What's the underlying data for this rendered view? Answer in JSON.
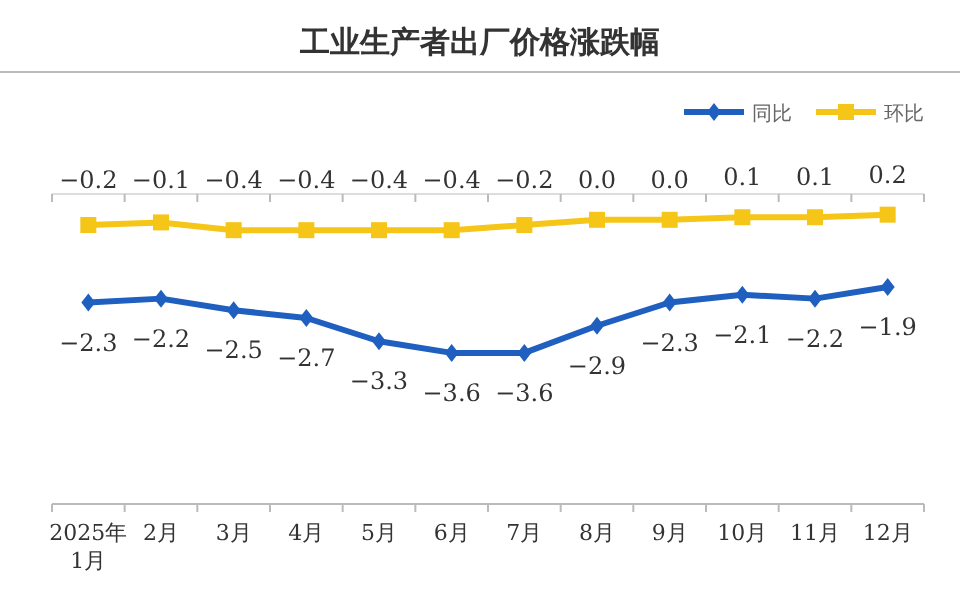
{
  "chart_data": {
    "type": "line",
    "title": "工业生产者出厂价格涨跌幅",
    "categories": [
      "2025年\n1月",
      "2月",
      "3月",
      "4月",
      "5月",
      "6月",
      "7月",
      "8月",
      "9月",
      "10月",
      "11月",
      "12月"
    ],
    "series": [
      {
        "name": "同比",
        "color": "#1f5fbf",
        "marker": "diamond",
        "values": [
          -2.3,
          -2.2,
          -2.5,
          -2.7,
          -3.3,
          -3.6,
          -3.6,
          -2.9,
          -2.3,
          -2.1,
          -2.2,
          -1.9
        ]
      },
      {
        "name": "环比",
        "color": "#f5c518",
        "marker": "square",
        "axis": "y2",
        "values": [
          -0.2,
          -0.1,
          -0.4,
          -0.4,
          -0.4,
          -0.4,
          -0.2,
          0.0,
          0.0,
          0.1,
          0.1,
          0.2
        ],
        "value_labels": [
          "−0.2",
          "−0.1",
          "−0.4",
          "−0.4",
          "−0.4",
          "−0.4",
          "−0.2",
          "0.0",
          "0.0",
          "0.1",
          "0.1",
          "0.2"
        ]
      }
    ],
    "ylim": [
      -7.5,
      0.5
    ],
    "y2lim": [
      -11,
      1
    ],
    "data_labels": true,
    "legend": "top right",
    "grid": false
  }
}
